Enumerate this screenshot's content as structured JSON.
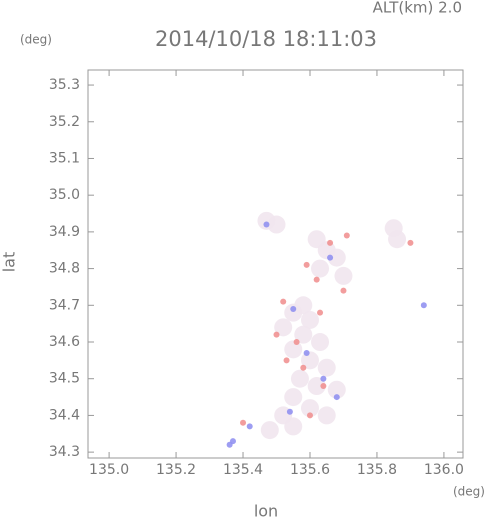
{
  "chart_data": {
    "type": "scatter",
    "title": "2014/10/18 18:11:03",
    "subtitle": "ALT(km) 2.0",
    "y_unit": "(deg)",
    "x_unit": "(deg)",
    "x_label": "lon",
    "y_label": "lat",
    "xlim": [
      134.937,
      136.057
    ],
    "ylim": [
      34.284,
      35.341
    ],
    "xticks": [
      {
        "value": 135.0,
        "label": "135.0"
      },
      135.2,
      135.4,
      135.6,
      135.8,
      {
        "value": 136.0,
        "label": "136.0"
      }
    ],
    "yticks": [
      34.3,
      34.4,
      34.5,
      34.6,
      34.7,
      34.8,
      34.9,
      {
        "value": 35.0,
        "label": "35.0"
      },
      35.1,
      35.2,
      35.3
    ],
    "series": [
      {
        "color": "#f1e6ee",
        "x": [
          135.5,
          135.47,
          135.62,
          135.65,
          135.68,
          135.63,
          135.7,
          135.58,
          135.55,
          135.6,
          135.52,
          135.58,
          135.63,
          135.55,
          135.6,
          135.65,
          135.57,
          135.62,
          135.68,
          135.55,
          135.6,
          135.65,
          135.52,
          135.48,
          135.55,
          135.85,
          135.86
        ],
        "values": [
          34.92,
          34.93,
          34.88,
          34.85,
          34.83,
          34.8,
          34.78,
          34.7,
          34.68,
          34.66,
          34.64,
          34.62,
          34.6,
          34.58,
          34.55,
          34.53,
          34.5,
          34.48,
          34.47,
          34.45,
          34.42,
          34.4,
          34.4,
          34.36,
          34.37,
          34.91,
          34.88
        ]
      },
      {
        "color": "#f08c8c",
        "x": [
          135.52,
          135.62,
          135.59,
          135.66,
          135.71,
          135.56,
          135.5,
          135.58,
          135.53,
          135.64,
          135.6,
          135.4,
          135.9,
          135.7,
          135.63
        ],
        "values": [
          34.71,
          34.77,
          34.81,
          34.87,
          34.89,
          34.6,
          34.62,
          34.53,
          34.55,
          34.48,
          34.4,
          34.38,
          34.87,
          34.74,
          34.68
        ]
      },
      {
        "color": "#8c8cf0",
        "x": [
          135.37,
          135.36,
          135.55,
          135.59,
          135.66,
          135.47,
          135.64,
          135.54,
          135.68,
          135.94,
          135.42
        ],
        "values": [
          34.33,
          34.32,
          34.69,
          34.57,
          34.83,
          34.92,
          34.5,
          34.41,
          34.45,
          34.7,
          34.37
        ]
      }
    ]
  }
}
